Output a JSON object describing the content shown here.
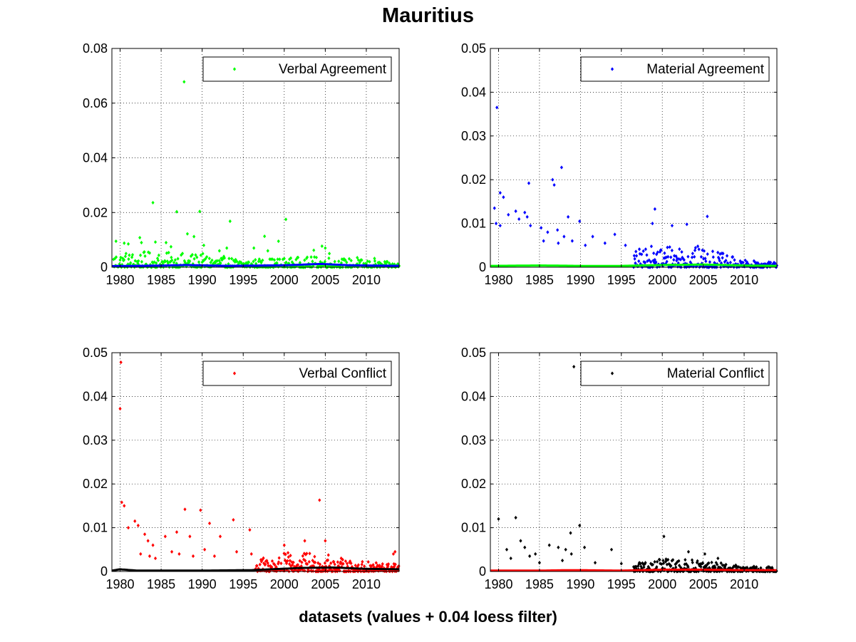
{
  "figure": {
    "title": "Mauritius",
    "footer": "datasets (values + 0.04 loess filter)"
  },
  "chart_data": [
    {
      "type": "scatter",
      "legend": "Verbal Agreement",
      "legend_position": "top-right",
      "color": "#00ff00",
      "filter_color": "#0000ff",
      "grid": true,
      "xlim": [
        1979,
        2014
      ],
      "ylim": [
        0,
        0.08
      ],
      "xticks": [
        1980,
        1985,
        1990,
        1995,
        2000,
        2005,
        2010
      ],
      "yticks": [
        0,
        0.02,
        0.04,
        0.06,
        0.08
      ],
      "ytick_labels": [
        "0",
        "0.02",
        "0.04",
        "0.06",
        "0.08"
      ],
      "points": [
        [
          1987.8,
          0.0678
        ],
        [
          1984.0,
          0.0236
        ],
        [
          1986.9,
          0.0203
        ],
        [
          1989.7,
          0.0204
        ],
        [
          2000.2,
          0.0175
        ],
        [
          1993.4,
          0.0168
        ],
        [
          1997.6,
          0.0113
        ],
        [
          1984.3,
          0.0092
        ],
        [
          1985.6,
          0.009
        ],
        [
          1988.2,
          0.0122
        ],
        [
          1989.0,
          0.0112
        ],
        [
          1999.3,
          0.0095
        ],
        [
          2004.6,
          0.0077
        ],
        [
          2005.0,
          0.007
        ],
        [
          1979.5,
          0.0095
        ],
        [
          1980.5,
          0.0088
        ],
        [
          1981.0,
          0.0085
        ],
        [
          1982.4,
          0.0108
        ],
        [
          1982.6,
          0.009
        ],
        [
          1986.2,
          0.0075
        ],
        [
          1990.2,
          0.008
        ],
        [
          1992.1,
          0.006
        ],
        [
          1993.0,
          0.007
        ],
        [
          1996.3,
          0.007
        ],
        [
          1998.0,
          0.006
        ],
        [
          2003.6,
          0.0062
        ],
        [
          2005.5,
          0.005
        ],
        [
          2008.9,
          0.0035
        ],
        [
          2011.0,
          0.0032
        ]
      ],
      "density": {
        "start": 1979.2,
        "end": 2014,
        "step": 0.08,
        "scale": [
          [
            1979,
            0.006
          ],
          [
            1990,
            0.005
          ],
          [
            1995,
            0.003
          ],
          [
            2005,
            0.004
          ],
          [
            2014,
            0.0016
          ]
        ]
      },
      "filter": [
        [
          1979,
          0.0004
        ],
        [
          1985,
          0.0006
        ],
        [
          1988,
          0.0008
        ],
        [
          1993,
          0.0005
        ],
        [
          2000,
          0.0007
        ],
        [
          2004.5,
          0.0012
        ],
        [
          2008,
          0.0007
        ],
        [
          2014,
          0.0005
        ]
      ]
    },
    {
      "type": "scatter",
      "legend": "Material Agreement",
      "legend_position": "top-right",
      "color": "#0000ff",
      "filter_color": "#00ff00",
      "grid": true,
      "xlim": [
        1979,
        2014
      ],
      "ylim": [
        0,
        0.05
      ],
      "xticks": [
        1980,
        1985,
        1990,
        1995,
        2000,
        2005,
        2010
      ],
      "yticks": [
        0,
        0.01,
        0.02,
        0.03,
        0.04,
        0.05
      ],
      "ytick_labels": [
        "0",
        "0.01",
        "0.02",
        "0.03",
        "0.04",
        "0.05"
      ],
      "points": [
        [
          1979.8,
          0.0365
        ],
        [
          1987.7,
          0.0228
        ],
        [
          1986.6,
          0.02
        ],
        [
          1986.8,
          0.0188
        ],
        [
          1983.7,
          0.0192
        ],
        [
          1980.2,
          0.017
        ],
        [
          1980.6,
          0.016
        ],
        [
          1979.5,
          0.0135
        ],
        [
          1982.1,
          0.0128
        ],
        [
          1983.2,
          0.0125
        ],
        [
          1999.1,
          0.0133
        ],
        [
          2005.5,
          0.0116
        ],
        [
          1988.5,
          0.0115
        ],
        [
          1989.9,
          0.0105
        ],
        [
          1979.7,
          0.01
        ],
        [
          1980.2,
          0.0095
        ],
        [
          1981.2,
          0.012
        ],
        [
          1982.5,
          0.011
        ],
        [
          1983.5,
          0.0115
        ],
        [
          1983.9,
          0.0095
        ],
        [
          1985.2,
          0.009
        ],
        [
          1986.0,
          0.008
        ],
        [
          1987.2,
          0.0085
        ],
        [
          1988.0,
          0.007
        ],
        [
          1991.5,
          0.007
        ],
        [
          1994.2,
          0.0075
        ],
        [
          1998.8,
          0.01
        ],
        [
          2001.2,
          0.0095
        ],
        [
          2003.0,
          0.0098
        ],
        [
          1985.5,
          0.006
        ],
        [
          1987.3,
          0.0055
        ],
        [
          1989.0,
          0.006
        ],
        [
          1990.6,
          0.005
        ],
        [
          1993.0,
          0.0055
        ],
        [
          1995.5,
          0.005
        ]
      ],
      "density": {
        "start": 1996.5,
        "end": 2014,
        "step": 0.07,
        "scale": [
          [
            1996.5,
            0.004
          ],
          [
            2002,
            0.006
          ],
          [
            2006,
            0.004
          ],
          [
            2010,
            0.0016
          ],
          [
            2014,
            0.0012
          ]
        ]
      },
      "filter": [
        [
          1979,
          0.0003
        ],
        [
          1985,
          0.0004
        ],
        [
          1990,
          0.0003
        ],
        [
          1995,
          0.0003
        ],
        [
          2000,
          0.0005
        ],
        [
          2005,
          0.0006
        ],
        [
          2010,
          0.0004
        ],
        [
          2014,
          0.0003
        ]
      ]
    },
    {
      "type": "scatter",
      "legend": "Verbal Conflict",
      "legend_position": "top-right",
      "color": "#ff0000",
      "filter_color": "#000000",
      "grid": true,
      "xlim": [
        1979,
        2014
      ],
      "ylim": [
        0,
        0.05
      ],
      "xticks": [
        1980,
        1985,
        1990,
        1995,
        2000,
        2005,
        2010
      ],
      "yticks": [
        0,
        0.01,
        0.02,
        0.03,
        0.04,
        0.05
      ],
      "ytick_labels": [
        "0",
        "0.01",
        "0.02",
        "0.03",
        "0.04",
        "0.05"
      ],
      "points": [
        [
          1980.1,
          0.0478
        ],
        [
          1980.0,
          0.0372
        ],
        [
          1980.2,
          0.0158
        ],
        [
          1980.5,
          0.015
        ],
        [
          2004.3,
          0.0163
        ],
        [
          1987.9,
          0.0142
        ],
        [
          1989.8,
          0.014
        ],
        [
          1981.0,
          0.01
        ],
        [
          1981.8,
          0.0115
        ],
        [
          1982.2,
          0.0105
        ],
        [
          1983.0,
          0.0085
        ],
        [
          1983.4,
          0.007
        ],
        [
          1984.0,
          0.006
        ],
        [
          1985.5,
          0.008
        ],
        [
          1986.9,
          0.009
        ],
        [
          1988.5,
          0.008
        ],
        [
          1990.9,
          0.011
        ],
        [
          1992.2,
          0.008
        ],
        [
          1993.8,
          0.0118
        ],
        [
          1995.8,
          0.0095
        ],
        [
          1982.5,
          0.004
        ],
        [
          1983.6,
          0.0035
        ],
        [
          1984.3,
          0.003
        ],
        [
          1986.3,
          0.0045
        ],
        [
          1987.2,
          0.004
        ],
        [
          1988.9,
          0.0035
        ],
        [
          1990.3,
          0.005
        ],
        [
          1991.5,
          0.0035
        ],
        [
          1994.2,
          0.0045
        ],
        [
          1996.0,
          0.004
        ],
        [
          2000.0,
          0.006
        ],
        [
          2002.5,
          0.007
        ],
        [
          2005.0,
          0.007
        ],
        [
          2013.3,
          0.004
        ],
        [
          2013.5,
          0.0045
        ]
      ],
      "density": {
        "start": 1996.5,
        "end": 2014,
        "step": 0.06,
        "scale": [
          [
            1996.5,
            0.003
          ],
          [
            2001,
            0.0045
          ],
          [
            2005,
            0.004
          ],
          [
            2008,
            0.0025
          ],
          [
            2014,
            0.0018
          ]
        ]
      },
      "filter": [
        [
          1979,
          0.0002
        ],
        [
          1980,
          0.0005
        ],
        [
          1982,
          0.0002
        ],
        [
          1990,
          0.0002
        ],
        [
          1996,
          0.0003
        ],
        [
          2002,
          0.0008
        ],
        [
          2006,
          0.0009
        ],
        [
          2010,
          0.0006
        ],
        [
          2014,
          0.0005
        ]
      ]
    },
    {
      "type": "scatter",
      "legend": "Material Conflict",
      "legend_position": "top-right",
      "color": "#000000",
      "filter_color": "#ff0000",
      "grid": true,
      "xlim": [
        1979,
        2014
      ],
      "ylim": [
        0,
        0.05
      ],
      "xticks": [
        1980,
        1985,
        1990,
        1995,
        2000,
        2005,
        2010
      ],
      "yticks": [
        0,
        0.01,
        0.02,
        0.03,
        0.04,
        0.05
      ],
      "ytick_labels": [
        "0",
        "0.01",
        "0.02",
        "0.03",
        "0.04",
        "0.05"
      ],
      "points": [
        [
          1989.2,
          0.0468
        ],
        [
          1980.0,
          0.012
        ],
        [
          1982.1,
          0.0123
        ],
        [
          1989.9,
          0.0105
        ],
        [
          2000.2,
          0.008
        ],
        [
          1988.8,
          0.0088
        ],
        [
          1981.0,
          0.005
        ],
        [
          1982.7,
          0.007
        ],
        [
          1983.2,
          0.0055
        ],
        [
          1983.8,
          0.0035
        ],
        [
          1984.5,
          0.004
        ],
        [
          1986.2,
          0.006
        ],
        [
          1987.3,
          0.0055
        ],
        [
          1988.2,
          0.005
        ],
        [
          1988.9,
          0.004
        ],
        [
          1990.5,
          0.0055
        ],
        [
          1993.8,
          0.005
        ],
        [
          1981.5,
          0.003
        ],
        [
          1985.0,
          0.002
        ],
        [
          1987.8,
          0.0025
        ],
        [
          1991.8,
          0.002
        ],
        [
          1995.0,
          0.0018
        ],
        [
          1997.2,
          0.002
        ],
        [
          2003.2,
          0.0045
        ],
        [
          2005.2,
          0.004
        ],
        [
          2006.8,
          0.003
        ]
      ],
      "density": {
        "start": 1996.5,
        "end": 2014,
        "step": 0.06,
        "scale": [
          [
            1996.5,
            0.0015
          ],
          [
            2000,
            0.003
          ],
          [
            2005,
            0.0025
          ],
          [
            2010,
            0.0012
          ],
          [
            2014,
            0.001
          ]
        ]
      },
      "filter": [
        [
          1979,
          0.0002
        ],
        [
          1985,
          0.0002
        ],
        [
          1989,
          0.0003
        ],
        [
          1995,
          0.0002
        ],
        [
          2000,
          0.0004
        ],
        [
          2005,
          0.0004
        ],
        [
          2010,
          0.0003
        ],
        [
          2014,
          0.0003
        ]
      ]
    }
  ]
}
